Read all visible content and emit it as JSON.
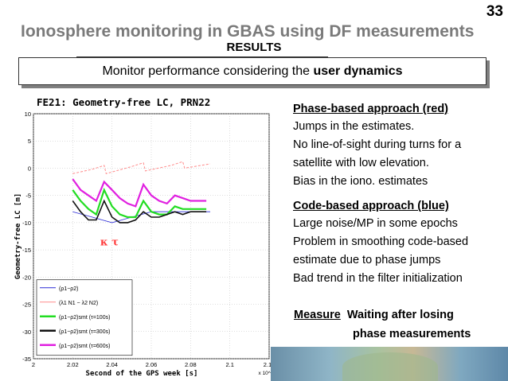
{
  "slide": {
    "number": "33",
    "title": "Ionosphere monitoring in GBAS using DF measurements",
    "subtitle": "RESULTS",
    "box_text_prefix": "Monitor performance considering the ",
    "box_text_bold": "user dynamics"
  },
  "notes": {
    "phase_heading": "Phase-based approach (red)",
    "phase_lines": [
      "Jumps in the estimates.",
      "No line-of-sight during turns for a",
      "satellite with low elevation.",
      "Bias in the iono. estimates"
    ],
    "code_heading": "Code-based approach (blue)",
    "code_lines": [
      "Large noise/MP in some epochs",
      "Problem in smoothing code-based",
      "estimate due to phase jumps",
      "Bad trend in the filter initialization"
    ],
    "measure_label": "Measure",
    "measure_text": "Waiting  after losing",
    "measure_text2": "phase measurements"
  },
  "chart_data": {
    "type": "line",
    "title": "FE21: Geometry-free LC, PRN22",
    "xlabel": "Second of the GPS week [s]",
    "ylabel": "Geometry-free LC [m]",
    "x_exponent": "x 10^5",
    "xlim": [
      2.0,
      2.12
    ],
    "ylim": [
      -35,
      10
    ],
    "xticks": [
      "2",
      "2.02",
      "2.04",
      "2.06",
      "2.08",
      "2.1",
      "2.12"
    ],
    "yticks": [
      "10",
      "5",
      "0",
      "-5",
      "-10",
      "-15",
      "-20",
      "-25",
      "-30",
      "-35"
    ],
    "grid": true,
    "legend_position": "bottom-left",
    "annotation": "κ τ",
    "colors": {
      "code": "#2b2bd6",
      "phase": "#ff8a8a",
      "smt100": "#22dd22",
      "smt300": "#111111",
      "smt600": "#e020e0",
      "annotation": "#ff3b3b"
    },
    "legend": [
      {
        "name": "(ρ1−ρ2)",
        "color": "code"
      },
      {
        "name": "(λ1 N1 − λ2 N2)",
        "color": "phase"
      },
      {
        "name": "(ρ1−ρ2)smt (τ=100s)",
        "color": "smt100"
      },
      {
        "name": "(ρ1−ρ2)smt (τ=300s)",
        "color": "smt300"
      },
      {
        "name": "(ρ1−ρ2)smt (τ=600s)",
        "color": "smt600"
      }
    ],
    "series": [
      {
        "name": "(ρ1−ρ2)",
        "color": "code",
        "x": [
          2.02,
          2.025,
          2.03,
          2.035,
          2.04,
          2.045,
          2.05,
          2.055,
          2.06,
          2.065,
          2.07,
          2.075,
          2.08,
          2.085,
          2.09
        ],
        "y": [
          -8,
          -8.5,
          -9,
          -9.5,
          -10,
          -9.5,
          -9,
          -8.5,
          -8,
          -8,
          -8,
          -8,
          -8,
          -8,
          -8
        ]
      },
      {
        "name": "(λ1 N1 − λ2 N2)",
        "color": "phase",
        "x": [
          2.02,
          2.03,
          2.036,
          2.037,
          2.05,
          2.056,
          2.057,
          2.07,
          2.076,
          2.077,
          2.09
        ],
        "y": [
          -1,
          -0.2,
          0.5,
          -1,
          0.3,
          1.0,
          -0.5,
          0.5,
          1.2,
          0,
          0.8
        ]
      },
      {
        "name": "(ρ1−ρ2)smt (τ=100s)",
        "color": "smt100",
        "x": [
          2.02,
          2.024,
          2.028,
          2.032,
          2.036,
          2.04,
          2.044,
          2.048,
          2.052,
          2.056,
          2.06,
          2.064,
          2.068,
          2.072,
          2.076,
          2.08,
          2.084,
          2.088
        ],
        "y": [
          -4,
          -6,
          -7.5,
          -8.5,
          -4,
          -7,
          -8.5,
          -9,
          -9,
          -6,
          -8,
          -8.5,
          -8.5,
          -7,
          -7.5,
          -7.5,
          -7.5,
          -7.5
        ]
      },
      {
        "name": "(ρ1−ρ2)smt (τ=300s)",
        "color": "smt300",
        "x": [
          2.02,
          2.024,
          2.028,
          2.032,
          2.036,
          2.04,
          2.044,
          2.048,
          2.052,
          2.056,
          2.06,
          2.064,
          2.068,
          2.072,
          2.076,
          2.08,
          2.084,
          2.088
        ],
        "y": [
          -6,
          -8,
          -9.5,
          -9.5,
          -6,
          -9,
          -10,
          -10,
          -9.5,
          -8,
          -9,
          -9,
          -8.5,
          -8,
          -8.5,
          -8,
          -8,
          -8
        ]
      },
      {
        "name": "(ρ1−ρ2)smt (τ=600s)",
        "color": "smt600",
        "x": [
          2.02,
          2.024,
          2.028,
          2.032,
          2.036,
          2.04,
          2.044,
          2.048,
          2.052,
          2.056,
          2.06,
          2.064,
          2.068,
          2.072,
          2.076,
          2.08,
          2.084,
          2.088
        ],
        "y": [
          -2,
          -4,
          -5,
          -6,
          -2.5,
          -4,
          -5.5,
          -6.5,
          -7,
          -3,
          -5,
          -6,
          -6.5,
          -5,
          -5.5,
          -6,
          -6,
          -6
        ]
      }
    ]
  }
}
